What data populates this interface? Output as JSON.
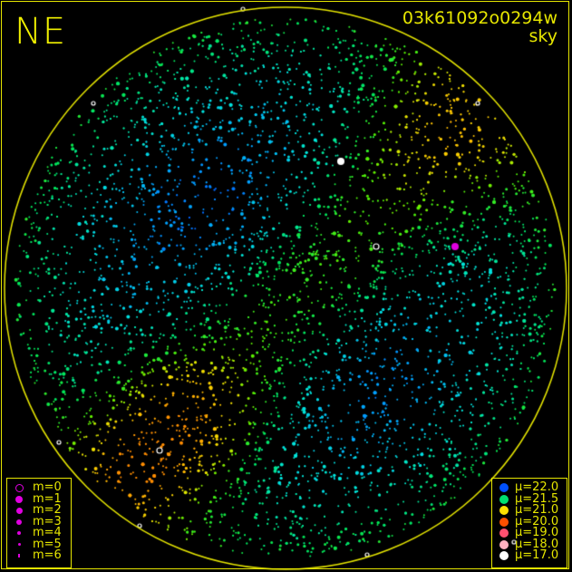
{
  "direction_label": "NE",
  "image_id": "03k61092o0294w",
  "image_type": "sky",
  "colors": {
    "border": "#e6e600",
    "magnitude_symbol": "#e000e0"
  },
  "magnitude_legend": [
    {
      "label": "m=0",
      "hollow": true
    },
    {
      "label": "m=1"
    },
    {
      "label": "m=2"
    },
    {
      "label": "m=3"
    },
    {
      "label": "m=4"
    },
    {
      "label": "m=5"
    },
    {
      "label": "m=6"
    }
  ],
  "brightness_legend": [
    {
      "label": "μ=22.0",
      "color": "#0050ff"
    },
    {
      "label": "μ=21.5",
      "color": "#00e070"
    },
    {
      "label": "μ=21.0",
      "color": "#ffe000"
    },
    {
      "label": "μ=20.0",
      "color": "#ff5000"
    },
    {
      "label": "μ=19.0",
      "color": "#ff5070"
    },
    {
      "label": "μ=18.0",
      "color": "#ffb0c0"
    },
    {
      "label": "μ=17.0",
      "color": "#ffffff"
    }
  ]
}
